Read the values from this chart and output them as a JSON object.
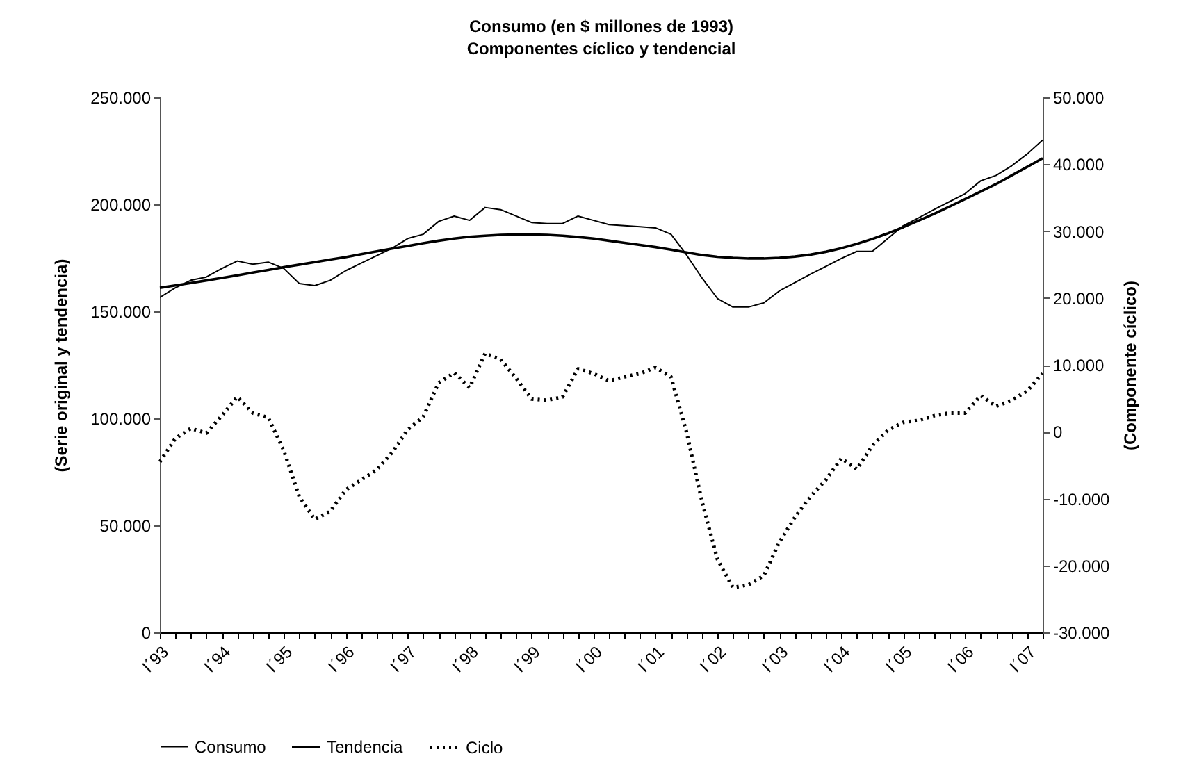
{
  "chart_data": {
    "type": "line",
    "title": "Consumo (en $ millones de 1993)",
    "subtitle": "Componentes cíclico y tendencial",
    "ylabel": "(Serie original y tendencia)",
    "y2label": "(Componente cíclico)",
    "categories": [
      "I´93",
      null,
      null,
      null,
      "I´94",
      null,
      null,
      null,
      "I´95",
      null,
      null,
      null,
      "I´96",
      null,
      null,
      null,
      "I´97",
      null,
      null,
      null,
      "I´98",
      null,
      null,
      null,
      "I´99",
      null,
      null,
      null,
      "I´00",
      null,
      null,
      null,
      "I´01",
      null,
      null,
      null,
      "I´02",
      null,
      null,
      null,
      "I´03",
      null,
      null,
      null,
      "I´04",
      null,
      null,
      null,
      "I´05",
      null,
      null,
      null,
      "I´06",
      null,
      null,
      null,
      "I´07",
      null
    ],
    "series": [
      {
        "name": "Consumo",
        "color": "#000000",
        "line_style": "solid",
        "values": [
          156500,
          161000,
          164500,
          166000,
          170000,
          173500,
          172000,
          173000,
          170000,
          163000,
          162000,
          164500,
          169000,
          172500,
          176000,
          179500,
          184000,
          186000,
          192000,
          194500,
          192500,
          198500,
          197500,
          194500,
          191500,
          191000,
          191000,
          194500,
          192500,
          190500,
          190000,
          189500,
          189000,
          186000,
          176400,
          165600,
          156000,
          152000,
          152000,
          154000,
          159500,
          163400,
          167300,
          171000,
          174700,
          178000,
          178000,
          184000,
          190000,
          193700,
          197600,
          201300,
          205000,
          211000,
          213500,
          218000,
          223500,
          230000
        ]
      },
      {
        "name": "Tendencia",
        "color": "#000000",
        "line_style": "solid",
        "values": [
          161000,
          162100,
          163200,
          164400,
          165600,
          166800,
          168100,
          169300,
          170600,
          171800,
          173000,
          174200,
          175300,
          176700,
          178000,
          179300,
          180500,
          181800,
          183000,
          184000,
          184800,
          185300,
          185700,
          185900,
          185900,
          185700,
          185300,
          184700,
          184000,
          183000,
          182000,
          181000,
          180000,
          178800,
          177500,
          176300,
          175500,
          175000,
          174700,
          174700,
          175000,
          175600,
          176500,
          177800,
          179500,
          181500,
          183800,
          186400,
          189300,
          192400,
          195600,
          199000,
          202500,
          206000,
          209500,
          213500,
          217500,
          221500
        ]
      },
      {
        "name": "Ciclo",
        "color": "#000000",
        "line_style": "dotted",
        "axis": "y2",
        "values": [
          -4500,
          -1000,
          500,
          -200,
          2400,
          5200,
          2800,
          2100,
          -2800,
          -9700,
          -13100,
          -11900,
          -8700,
          -7200,
          -5700,
          -3100,
          300,
          2200,
          7300,
          8800,
          6600,
          11700,
          10800,
          8000,
          4900,
          4700,
          5200,
          9400,
          8700,
          7600,
          8200,
          8700,
          9600,
          8200,
          0,
          -10400,
          -19100,
          -23300,
          -22900,
          -21500,
          -16500,
          -12800,
          -9700,
          -7200,
          -4000,
          -5600,
          -2100,
          200,
          1400,
          1700,
          2400,
          2800,
          2800,
          5400,
          3800,
          4700,
          6100,
          8700
        ]
      }
    ],
    "ylim": [
      0,
      250000
    ],
    "yticks": [
      {
        "value": 0,
        "label": "0"
      },
      {
        "value": 50000,
        "label": "50.000"
      },
      {
        "value": 100000,
        "label": "100.000"
      },
      {
        "value": 150000,
        "label": "150.000"
      },
      {
        "value": 200000,
        "label": "200.000"
      },
      {
        "value": 250000,
        "label": "250.000"
      }
    ],
    "y2lim": [
      -30000,
      50000
    ],
    "y2ticks": [
      {
        "value": -30000,
        "label": "-30.000"
      },
      {
        "value": -20000,
        "label": "-20.000"
      },
      {
        "value": -10000,
        "label": "-10.000"
      },
      {
        "value": 0,
        "label": "0"
      },
      {
        "value": 10000,
        "label": "10.000"
      },
      {
        "value": 20000,
        "label": "20.000"
      },
      {
        "value": 30000,
        "label": "30.000"
      },
      {
        "value": 40000,
        "label": "40.000"
      },
      {
        "value": 50000,
        "label": "50.000"
      }
    ],
    "grid": false,
    "legend": "bottom"
  }
}
